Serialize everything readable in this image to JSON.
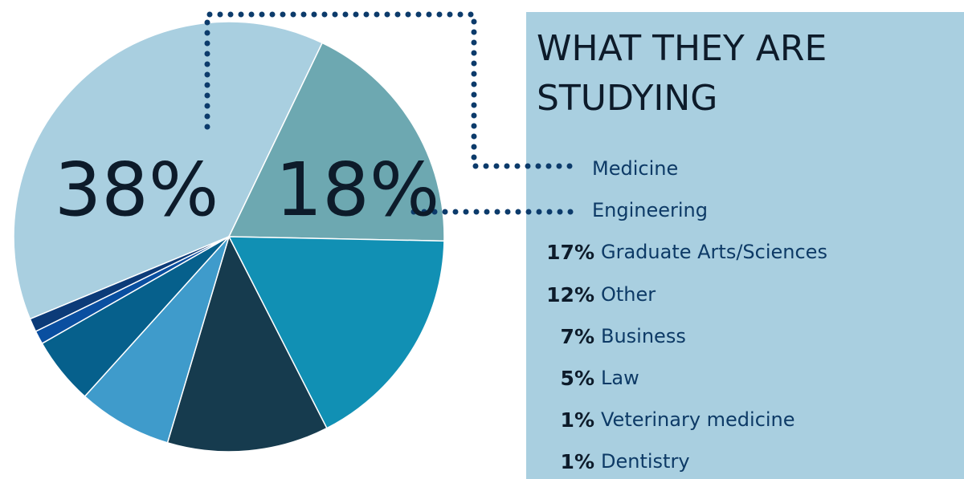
{
  "chart_data": {
    "type": "pie",
    "title": "WHAT THEY ARE STUDYING",
    "categories": [
      "Medicine",
      "Engineering",
      "Graduate Arts/Sciences",
      "Other",
      "Business",
      "Law",
      "Veterinary medicine",
      "Dentistry"
    ],
    "values": [
      38,
      18,
      17,
      12,
      7,
      5,
      1,
      1
    ],
    "value_labels": [
      "38%",
      "18%",
      "17%",
      "12%",
      "7%",
      "5%",
      "1%",
      "1%"
    ],
    "colors": [
      "#a9cfe0",
      "#6da8b1",
      "#1190b4",
      "#163b4e",
      "#3f9bcb",
      "#06608c",
      "#0a4fa0",
      "#0c3b78"
    ]
  }
}
